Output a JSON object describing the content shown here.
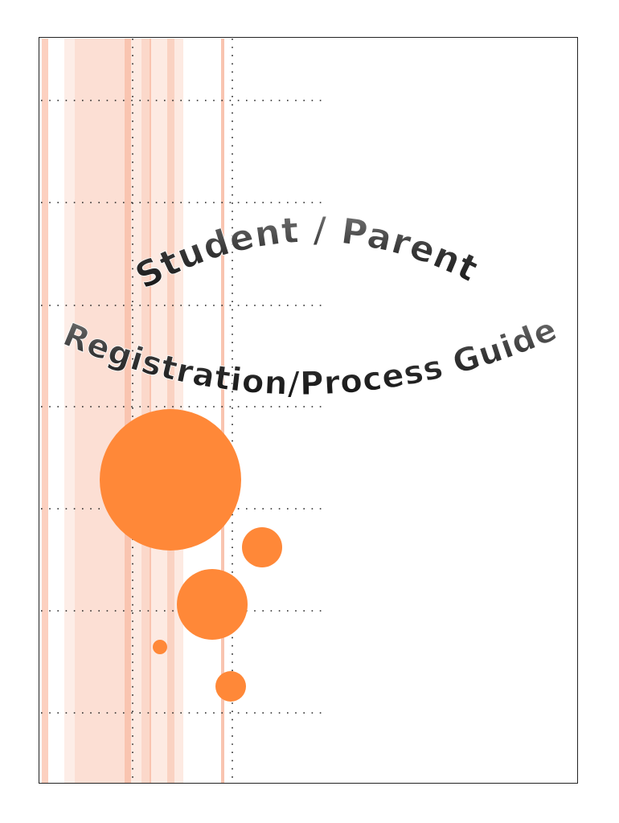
{
  "title": {
    "line1": "Student / Parent",
    "line2": "Registration/Process Guide"
  },
  "colors": {
    "accent_circle": "#FF8838",
    "stripe_pink": "#FCDFD4",
    "stripe_dark": "#F9C4B0",
    "border": "#222222",
    "text_dark": "#111111",
    "text_light": "#8a8a8a"
  }
}
